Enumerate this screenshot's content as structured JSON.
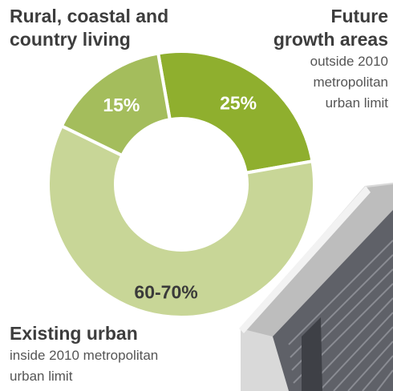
{
  "chart_data": {
    "type": "pie",
    "donut": true,
    "slices": [
      {
        "name": "Future growth areas",
        "label": "25%",
        "value": 25,
        "color": "#8faf2e"
      },
      {
        "name": "Existing urban",
        "label": "60-70%",
        "value": 60,
        "color": "#c8d697"
      },
      {
        "name": "Rural, coastal and country living",
        "label": "15%",
        "value": 15,
        "color": "#a4bd5c"
      }
    ]
  },
  "labels": {
    "rural": {
      "title": "Rural, coastal and country living"
    },
    "future": {
      "title_line1": "Future",
      "title_line2": "growth areas",
      "sub_line1": "outside 2010",
      "sub_line2": "metropolitan",
      "sub_line3": "urban limit"
    },
    "existing": {
      "title": "Existing urban",
      "sub_line1": "inside 2010 metropolitan",
      "sub_line2": "urban limit"
    }
  }
}
